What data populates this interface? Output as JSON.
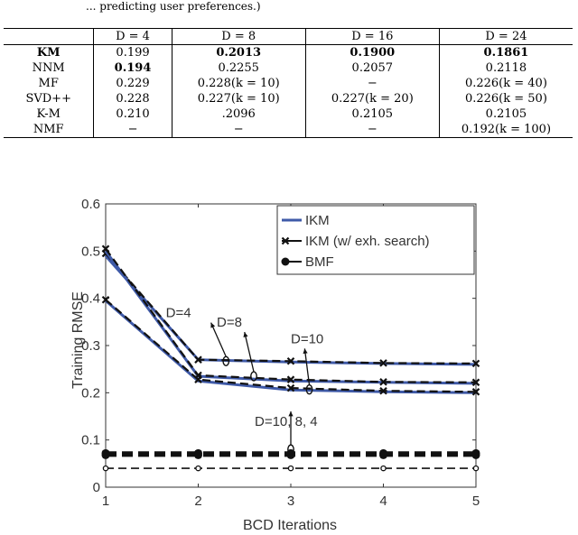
{
  "caption_fragment": "...                  predicting user preferences.)",
  "table": {
    "headers": [
      "",
      "D = 4",
      "D = 8",
      "D = 16",
      "D = 24"
    ],
    "rows": [
      {
        "cells": [
          "KM",
          "0.199",
          "0.2013",
          "0.1900",
          "0.1861"
        ],
        "bold": [
          true,
          false,
          true,
          true,
          true
        ]
      },
      {
        "cells": [
          "NNM",
          "0.194",
          "0.2255",
          "0.2057",
          "0.2118"
        ],
        "bold": [
          false,
          true,
          false,
          false,
          false
        ]
      },
      {
        "cells": [
          "MF",
          "0.229",
          "0.228(k = 10)",
          "−",
          "0.226(k = 40)"
        ],
        "bold": [
          false,
          false,
          false,
          false,
          false
        ]
      },
      {
        "cells": [
          "SVD++",
          "0.228",
          "0.227(k = 10)",
          "0.227(k = 20)",
          "0.226(k = 50)"
        ],
        "bold": [
          false,
          false,
          false,
          false,
          false
        ]
      },
      {
        "cells": [
          "K-M",
          "0.210",
          ".2096",
          "0.2105",
          "0.2105"
        ],
        "bold": [
          false,
          false,
          false,
          false,
          false
        ]
      },
      {
        "cells": [
          "NMF",
          "−",
          "−",
          "−",
          "0.192(k = 100)"
        ],
        "bold": [
          false,
          false,
          false,
          false,
          false
        ]
      }
    ]
  },
  "chart_data": {
    "type": "line",
    "xlabel": "BCD Iterations",
    "ylabel": "Training RMSE",
    "xlim": [
      1,
      5
    ],
    "ylim": [
      0,
      0.6
    ],
    "xticks": [
      1,
      2,
      3,
      4,
      5
    ],
    "yticks": [
      0,
      0.1,
      0.2,
      0.3,
      0.4,
      0.5,
      0.6
    ],
    "legend": {
      "placement": "top-right",
      "entries": [
        "IKM",
        "IKM (w/ exh. search)",
        "BMF"
      ]
    },
    "x": [
      1,
      2,
      3,
      4,
      5
    ],
    "series": [
      {
        "name": "IKM",
        "group": "D=4",
        "style": "ikm",
        "values": [
          0.49,
          0.27,
          0.265,
          0.262,
          0.26
        ]
      },
      {
        "name": "IKM (w/ exh. search)",
        "group": "D=4",
        "style": "exh",
        "values": [
          0.495,
          0.27,
          0.267,
          0.263,
          0.262
        ]
      },
      {
        "name": "IKM",
        "group": "D=8",
        "style": "ikm",
        "values": [
          0.5,
          0.235,
          0.225,
          0.222,
          0.22
        ]
      },
      {
        "name": "IKM (w/ exh. search)",
        "group": "D=8",
        "style": "exh",
        "values": [
          0.505,
          0.237,
          0.228,
          0.223,
          0.222
        ]
      },
      {
        "name": "IKM",
        "group": "D=10",
        "style": "ikm",
        "values": [
          0.395,
          0.225,
          0.206,
          0.202,
          0.2
        ]
      },
      {
        "name": "IKM (w/ exh. search)",
        "group": "D=10",
        "style": "exh",
        "values": [
          0.397,
          0.228,
          0.21,
          0.204,
          0.202
        ]
      },
      {
        "name": "BMF",
        "group": "D=10",
        "style": "bmf",
        "values": [
          0.072,
          0.072,
          0.072,
          0.072,
          0.072
        ]
      },
      {
        "name": "BMF",
        "group": "D=8",
        "style": "bmf",
        "values": [
          0.068,
          0.068,
          0.068,
          0.068,
          0.068
        ]
      },
      {
        "name": "BMF",
        "group": "D=4",
        "style": "bmf-thin",
        "values": [
          0.04,
          0.04,
          0.04,
          0.04,
          0.04
        ]
      }
    ],
    "annotations": [
      {
        "text": "D=4",
        "x": 1.65,
        "y": 0.36,
        "target": [
          2.3,
          0.267
        ]
      },
      {
        "text": "D=8",
        "x": 2.2,
        "y": 0.34,
        "target": [
          2.6,
          0.235
        ]
      },
      {
        "text": "D=10",
        "x": 3.0,
        "y": 0.305,
        "target": [
          3.2,
          0.207
        ]
      },
      {
        "text": "D=10, 8, 4",
        "x": 3.0,
        "y": 0.13,
        "target": [
          3.0,
          0.08
        ]
      }
    ]
  }
}
